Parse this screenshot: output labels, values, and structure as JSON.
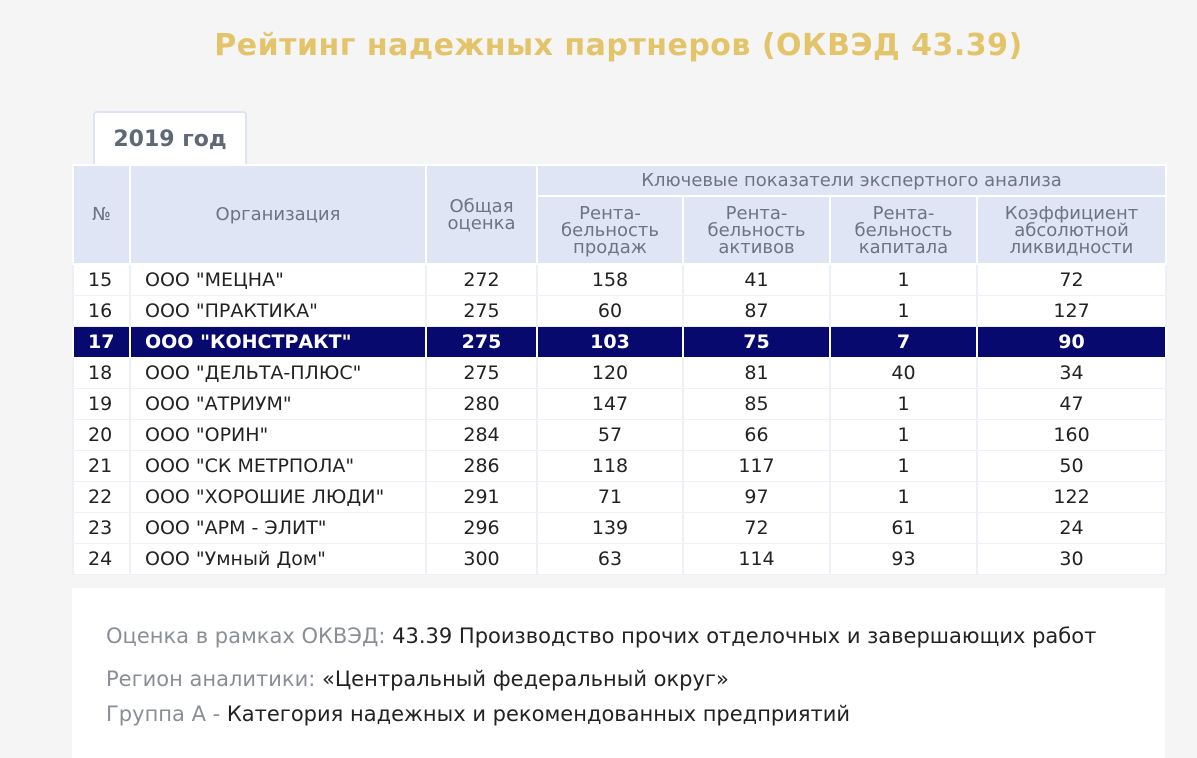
{
  "title": "Рейтинг надежных партнеров (ОКВЭД 43.39)",
  "tab": "2019 год",
  "headers": {
    "num": "№",
    "org": "Организация",
    "score": "Общая оценка",
    "group": "Ключевые показатели экспертного анализа",
    "sub": [
      "Рента-бельность продаж",
      "Рента-бельность активов",
      "Рента-бельность капитала",
      "Коэффициент абсолютной ликвидности"
    ]
  },
  "rows": [
    {
      "num": "15",
      "org": "ООО \"МЕЦНА\"",
      "score": "272",
      "v1": "158",
      "v2": "41",
      "v3": "1",
      "v4": "72",
      "highlight": false
    },
    {
      "num": "16",
      "org": "ООО \"ПРАКТИКА\"",
      "score": "275",
      "v1": "60",
      "v2": "87",
      "v3": "1",
      "v4": "127",
      "highlight": false
    },
    {
      "num": "17",
      "org": "ООО \"КОНСТРАКТ\"",
      "score": "275",
      "v1": "103",
      "v2": "75",
      "v3": "7",
      "v4": "90",
      "highlight": true
    },
    {
      "num": "18",
      "org": "ООО \"ДЕЛЬТА-ПЛЮС\"",
      "score": "275",
      "v1": "120",
      "v2": "81",
      "v3": "40",
      "v4": "34",
      "highlight": false
    },
    {
      "num": "19",
      "org": "ООО \"АТРИУМ\"",
      "score": "280",
      "v1": "147",
      "v2": "85",
      "v3": "1",
      "v4": "47",
      "highlight": false
    },
    {
      "num": "20",
      "org": "ООО \"ОРИН\"",
      "score": "284",
      "v1": "57",
      "v2": "66",
      "v3": "1",
      "v4": "160",
      "highlight": false
    },
    {
      "num": "21",
      "org": "ООО \"СК МЕТРПОЛА\"",
      "score": "286",
      "v1": "118",
      "v2": "117",
      "v3": "1",
      "v4": "50",
      "highlight": false
    },
    {
      "num": "22",
      "org": "ООО \"ХОРОШИЕ ЛЮДИ\"",
      "score": "291",
      "v1": "71",
      "v2": "97",
      "v3": "1",
      "v4": "122",
      "highlight": false
    },
    {
      "num": "23",
      "org": "ООО \"АРМ - ЭЛИТ\"",
      "score": "296",
      "v1": "139",
      "v2": "72",
      "v3": "61",
      "v4": "24",
      "highlight": false
    },
    {
      "num": "24",
      "org": "ООО \"Умный Дом\"",
      "score": "300",
      "v1": "63",
      "v2": "114",
      "v3": "93",
      "v4": "30",
      "highlight": false
    }
  ],
  "info": [
    {
      "label": "Оценка в рамках ОКВЭД:",
      "value": "43.39 Производство прочих отделочных и завершающих работ"
    },
    {
      "label": "Регион аналитики:",
      "value": "«Центральный федеральный округ»"
    },
    {
      "label": "Группа А -",
      "value": "Категория надежных и рекомендованных предприятий"
    }
  ],
  "colors": {
    "title": "#e3c46a",
    "header_bg": "#dfe5f5",
    "highlight_bg": "#08096e"
  }
}
